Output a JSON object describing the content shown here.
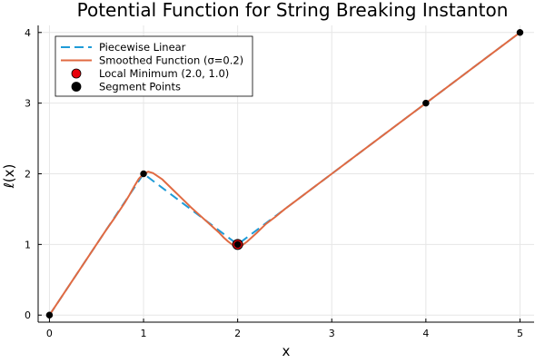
{
  "chart_data": {
    "type": "line",
    "title": "Potential Function for String Breaking Instanton",
    "xlabel": "x",
    "ylabel": "ℓ(x)",
    "xlim": [
      -0.12,
      5.15
    ],
    "ylim": [
      -0.1,
      4.1
    ],
    "xticks": [
      0,
      1,
      2,
      3,
      4,
      5
    ],
    "yticks": [
      0,
      1,
      2,
      3,
      4
    ],
    "grid": true,
    "legend_position": "top-left",
    "series": [
      {
        "name": "Piecewise Linear",
        "kind": "line",
        "style": "dashed",
        "color": "#1f9bd7",
        "x": [
          0,
          1,
          2,
          4,
          5
        ],
        "y": [
          0,
          2,
          1,
          3,
          4
        ]
      },
      {
        "name": "Smoothed Function (σ=0.2)",
        "kind": "line",
        "style": "solid",
        "color": "#e06a42",
        "x": [
          0,
          0.2,
          0.4,
          0.5,
          0.6,
          0.7,
          0.8,
          0.85,
          0.9,
          0.95,
          1.0,
          1.05,
          1.1,
          1.2,
          1.3,
          1.4,
          1.5,
          1.6,
          1.7,
          1.8,
          1.85,
          1.9,
          1.95,
          2.0,
          2.05,
          2.1,
          2.2,
          2.3,
          2.4,
          2.5,
          2.6,
          2.8,
          3.0,
          3.5,
          4.0,
          4.5,
          5.0
        ],
        "y": [
          0,
          0.4,
          0.8,
          1.0,
          1.2,
          1.39,
          1.59,
          1.7,
          1.82,
          1.93,
          2.0,
          2.03,
          2.01,
          1.92,
          1.79,
          1.66,
          1.53,
          1.41,
          1.29,
          1.17,
          1.1,
          1.04,
          0.99,
          0.97,
          0.99,
          1.04,
          1.16,
          1.29,
          1.39,
          1.5,
          1.6,
          1.8,
          2.0,
          2.5,
          3.0,
          3.5,
          4.0
        ]
      },
      {
        "name": "Local Minimum (2.0, 1.0)",
        "kind": "scatter",
        "color": "#e8000b",
        "x": [
          2.0
        ],
        "y": [
          1.0
        ]
      },
      {
        "name": "Segment Points",
        "kind": "scatter",
        "color": "#000000",
        "x": [
          0,
          1,
          2,
          4,
          5
        ],
        "y": [
          0,
          2,
          1,
          3,
          4
        ]
      }
    ]
  }
}
